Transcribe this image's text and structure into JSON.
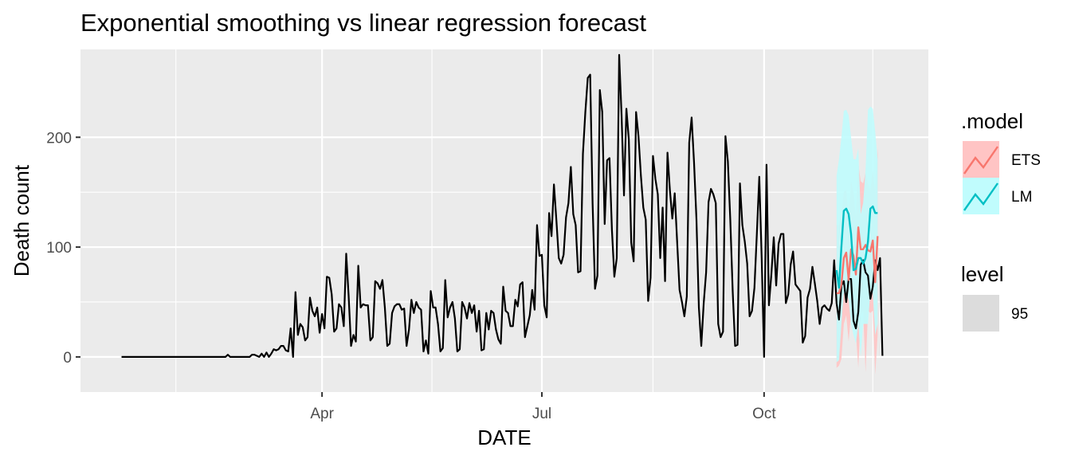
{
  "chart_data": {
    "type": "line",
    "title": "Exponential smoothing vs linear regression forecast",
    "xlabel": "DATE",
    "ylabel": "Death count",
    "ylim": [
      -32,
      280
    ],
    "y_ticks": [
      0,
      100,
      200
    ],
    "y_tick_labels": [
      "0",
      "100",
      "200"
    ],
    "x_tick_labels": [
      "Apr",
      "Jul",
      "Oct"
    ],
    "x_tick_days": [
      60,
      151,
      243
    ],
    "x_minor_days": [
      -0.5,
      105.5,
      197,
      288
    ],
    "xlim": [
      -40,
      311
    ],
    "grid": true,
    "legend_position": "right",
    "history": {
      "color": "#000000",
      "start_day": -23,
      "values": [
        0,
        0,
        0,
        0,
        0,
        0,
        0,
        0,
        0,
        0,
        0,
        0,
        0,
        0,
        0,
        0,
        0,
        0,
        0,
        0,
        0,
        0,
        0,
        0,
        0,
        0,
        0,
        0,
        0,
        0,
        0,
        0,
        0,
        0,
        0,
        0,
        0,
        0,
        0,
        0,
        0,
        0,
        0,
        0,
        2,
        0,
        0,
        0,
        0,
        0,
        0,
        0,
        0,
        0,
        2,
        2,
        1,
        0,
        3,
        0,
        4,
        0,
        3,
        7,
        6,
        7,
        10,
        10,
        6,
        5,
        26,
        0,
        59,
        20,
        30,
        27,
        15,
        18,
        54,
        42,
        37,
        45,
        22,
        39,
        26,
        73,
        72,
        57,
        23,
        26,
        48,
        45,
        28,
        94,
        56,
        10,
        20,
        14,
        83,
        45,
        48,
        47,
        47,
        15,
        18,
        69,
        67,
        62,
        70,
        45,
        10,
        12,
        40,
        46,
        48,
        48,
        43,
        44,
        10,
        25,
        52,
        40,
        50,
        45,
        43,
        5,
        15,
        3,
        60,
        45,
        45,
        30,
        5,
        8,
        70,
        36,
        45,
        50,
        35,
        5,
        7,
        50,
        45,
        35,
        49,
        40,
        47,
        23,
        42,
        6,
        7,
        40,
        25,
        42,
        40,
        25,
        16,
        12,
        64,
        42,
        40,
        28,
        28,
        52,
        46,
        66,
        68,
        18,
        28,
        38,
        61,
        43,
        120,
        92,
        93,
        47,
        36,
        131,
        110,
        157,
        125,
        90,
        85,
        93,
        127,
        140,
        173,
        130,
        120,
        77,
        78,
        185,
        223,
        254,
        257,
        140,
        62,
        74,
        243,
        223,
        121,
        179,
        181,
        116,
        73,
        90,
        275,
        220,
        147,
        226,
        198,
        104,
        87,
        223,
        201,
        165,
        136,
        125,
        51,
        72,
        183,
        162,
        148,
        90,
        136,
        69,
        186,
        152,
        126,
        149,
        105,
        61,
        50,
        37,
        55,
        195,
        218,
        177,
        125,
        45,
        10,
        49,
        77,
        141,
        153,
        148,
        140,
        30,
        18,
        23,
        201,
        178,
        125,
        60,
        10,
        11,
        158,
        120,
        105,
        85,
        37,
        42,
        63,
        112,
        164,
        90,
        0,
        175,
        47,
        75,
        109,
        65,
        103,
        112,
        112,
        49,
        57,
        84,
        96,
        66,
        63,
        60,
        13,
        19,
        54,
        62,
        82,
        67,
        51,
        30,
        45,
        47,
        44,
        42,
        49,
        88,
        49,
        34,
        65,
        69,
        50,
        71,
        71,
        33,
        26,
        41,
        84,
        88,
        77,
        74,
        53,
        64,
        88,
        79,
        90,
        1
      ]
    },
    "forecast": {
      "start_day": 273,
      "series": [
        {
          "name": "ETS",
          "line_color": "#F8766D",
          "band_color": "#FFC4C4",
          "mean": [
            58,
            58,
            66,
            90,
            95,
            70,
            98,
            92,
            75,
            118,
            98,
            98,
            102,
            97,
            96,
            106,
            68,
            110
          ],
          "lower": [
            -10,
            -8,
            -2,
            30,
            38,
            14,
            40,
            34,
            22,
            -10,
            38,
            42,
            -14,
            42,
            40,
            42,
            -16,
            20
          ],
          "upper": [
            120,
            120,
            130,
            150,
            152,
            126,
            160,
            150,
            128,
            176,
            160,
            158,
            168,
            158,
            152,
            170,
            150,
            190
          ]
        },
        {
          "name": "LM",
          "line_color": "#00BFC4",
          "band_color": "#C0FCFD",
          "mean": [
            79,
            63,
            100,
            133,
            135,
            130,
            112,
            79,
            80,
            90,
            90,
            85,
            90,
            105,
            135,
            137,
            131,
            131
          ],
          "lower": [
            -5,
            -3,
            30,
            58,
            59,
            52,
            30,
            20,
            12,
            30,
            0,
            30,
            30,
            30,
            60,
            58,
            20,
            30
          ],
          "upper": [
            165,
            180,
            200,
            224,
            225,
            220,
            200,
            180,
            180,
            190,
            130,
            140,
            170,
            225,
            228,
            226,
            205,
            180
          ]
        }
      ]
    },
    "legends": [
      {
        "title": ".model",
        "entries": [
          "ETS",
          "LM"
        ]
      },
      {
        "title": "level",
        "entries": [
          "95"
        ]
      }
    ]
  }
}
